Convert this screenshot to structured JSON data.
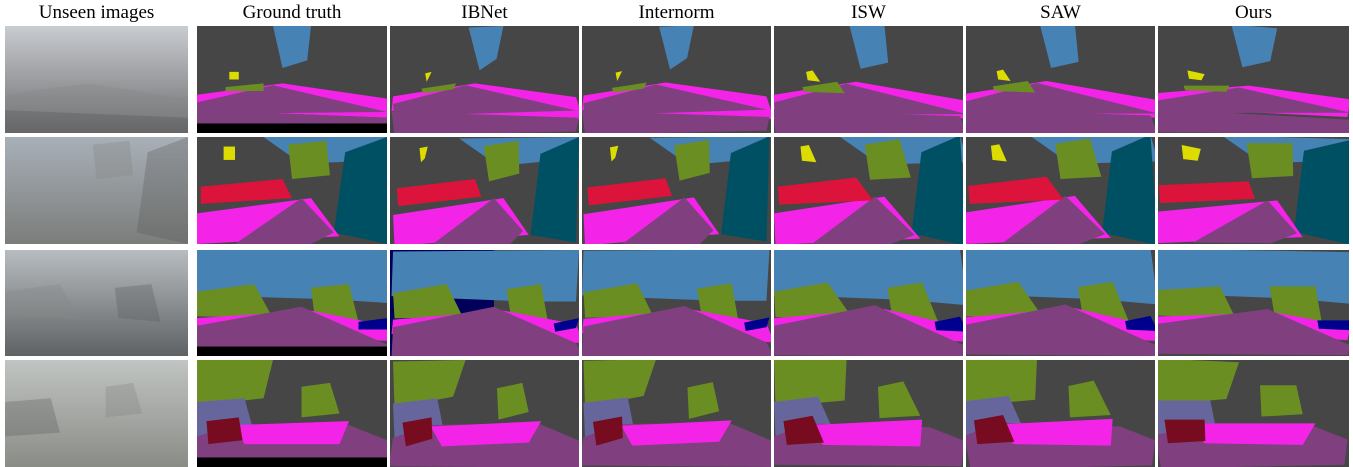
{
  "figure": {
    "columns": [
      "Unseen images",
      "Ground truth",
      "IBNet",
      "Internorm",
      "ISW",
      "SAW",
      "Ours"
    ]
  }
}
